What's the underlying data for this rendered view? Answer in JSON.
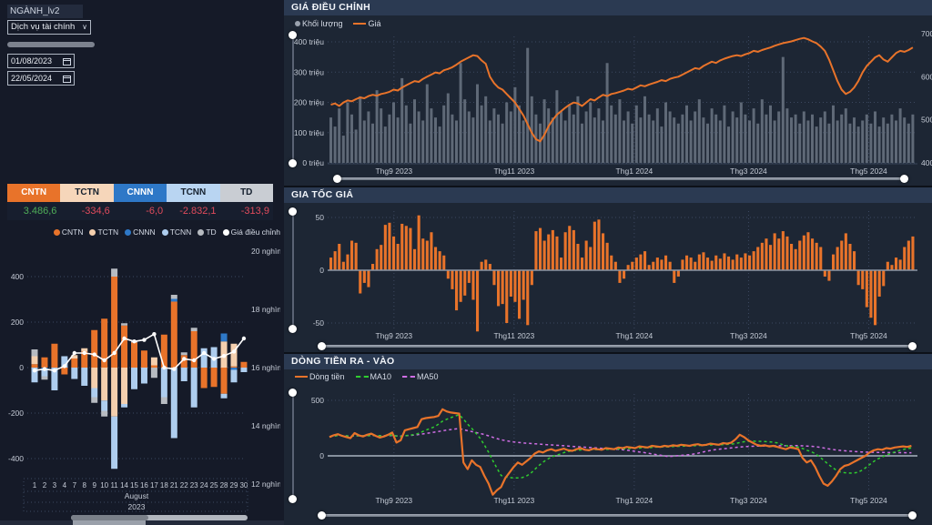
{
  "filters": {
    "field_label": "NGÀNH_lv2",
    "dropdown_value": "Dịch vụ tài chính",
    "date_from": "01/08/2023",
    "date_to": "22/05/2024"
  },
  "summary_table": {
    "headers": [
      "CNTN",
      "TCTN",
      "CNNN",
      "TCNN",
      "TD"
    ],
    "header_bg": [
      "#e8732a",
      "#f6d6ba",
      "#2e78c7",
      "#b9d5f2",
      "#c9cdd3"
    ],
    "header_fg": [
      "#ffffff",
      "#15202e",
      "#ffffff",
      "#15202e",
      "#15202e"
    ],
    "values": [
      "3.486,6",
      "-334,6",
      "-6,0",
      "-2.832,1",
      "-313,9"
    ],
    "value_colors": [
      "#4fae58",
      "#e14b5c",
      "#e14b5c",
      "#e14b5c",
      "#e14b5c"
    ]
  },
  "colors": {
    "background": "#10151f",
    "panel": "#1d2634",
    "titlebar": "#2b3a52",
    "orange": "#e8732a",
    "peach": "#f4cfae",
    "blue": "#2e78c7",
    "light_blue": "#aecdee",
    "gray": "#c3c7cd",
    "volume_gray": "#5f6977",
    "white_line": "#ffffff",
    "ma10_green": "#2fcc2f",
    "ma50_violet": "#cf6ee4",
    "axis_text": "#c5cbd6",
    "grid": "#3c4860"
  },
  "chart_data": [
    {
      "id": "flow_by_day",
      "type": "bar",
      "stacked": true,
      "title": "",
      "legend": [
        "CNTN",
        "TCTN",
        "CNNN",
        "TCNN",
        "TD",
        "Giá điều chỉnh"
      ],
      "legend_colors": [
        "#e8732a",
        "#f4cfae",
        "#2e78c7",
        "#aecdee",
        "#b7bbc1",
        "#ffffff"
      ],
      "categories": [
        "1",
        "2",
        "3",
        "4",
        "7",
        "8",
        "9",
        "10",
        "11",
        "14",
        "15",
        "16",
        "17",
        "18",
        "21",
        "22",
        "23",
        "24",
        "25",
        "28",
        "29",
        "30"
      ],
      "x_group_labels": [
        "August",
        "2023"
      ],
      "series": [
        {
          "name": "CNTN",
          "values": [
            15,
            45,
            105,
            -30,
            40,
            70,
            165,
            215,
            400,
            185,
            110,
            75,
            10,
            145,
            290,
            55,
            160,
            -90,
            -85,
            -115,
            5,
            25
          ]
        },
        {
          "name": "TCTN",
          "values": [
            35,
            0,
            0,
            0,
            15,
            15,
            -90,
            -145,
            -215,
            -160,
            0,
            0,
            35,
            0,
            0,
            0,
            0,
            0,
            0,
            115,
            100,
            0
          ]
        },
        {
          "name": "CNNN",
          "values": [
            0,
            -8,
            0,
            0,
            0,
            0,
            0,
            0,
            0,
            0,
            0,
            0,
            0,
            0,
            12,
            0,
            0,
            0,
            0,
            35,
            -10,
            0
          ]
        },
        {
          "name": "TCNN",
          "values": [
            -65,
            -30,
            -100,
            50,
            -50,
            -80,
            -40,
            -45,
            -230,
            -15,
            -95,
            -70,
            0,
            -130,
            -310,
            -60,
            -175,
            85,
            90,
            -20,
            -55,
            -20
          ]
        },
        {
          "name": "TD",
          "values": [
            30,
            -15,
            0,
            0,
            0,
            0,
            -25,
            -25,
            35,
            10,
            10,
            0,
            -45,
            -30,
            18,
            12,
            15,
            0,
            0,
            0,
            0,
            0
          ]
        }
      ],
      "line_series": {
        "name": "Giá điều chỉnh",
        "axis": "right",
        "values": [
          15.9,
          15.95,
          15.9,
          16.05,
          16.5,
          16.5,
          16.45,
          16.25,
          16.5,
          17.0,
          16.9,
          16.95,
          17.15,
          16.0,
          15.95,
          16.3,
          16.25,
          16.5,
          16.3,
          16.4,
          16.55,
          17.0
        ]
      },
      "y_left_ticks": [
        "400",
        "200",
        "0",
        "-200",
        "-400"
      ],
      "y_right_ticks": [
        "20 nghìn",
        "18 nghìn",
        "16 nghìn",
        "14 nghìn",
        "12 nghìn"
      ]
    },
    {
      "id": "gia_dieu_chinh",
      "type": "line+bar",
      "title": "GIÁ ĐIỀU CHỈNH",
      "legend": [
        "Khối lượng",
        "Giá"
      ],
      "x_ticks": [
        "Thg9 2023",
        "Thg11 2023",
        "Thg1 2024",
        "Thg3 2024",
        "Thg5 2024"
      ],
      "y_left_ticks": [
        "400 triệu",
        "300 triệu",
        "200 triệu",
        "100 triệu",
        "0 triệu"
      ],
      "y_right_ticks": [
        "700",
        "600",
        "500",
        "400"
      ],
      "volume": [
        150,
        120,
        180,
        90,
        200,
        160,
        110,
        220,
        140,
        170,
        130,
        240,
        180,
        120,
        160,
        200,
        150,
        280,
        190,
        130,
        210,
        170,
        140,
        260,
        180,
        150,
        120,
        190,
        230,
        160,
        140,
        330,
        210,
        170,
        150,
        260,
        190,
        220,
        140,
        180,
        160,
        130,
        200,
        170,
        250,
        190,
        140,
        380,
        220,
        160,
        130,
        210,
        180,
        150,
        240,
        170,
        140,
        190,
        160,
        220,
        130,
        170,
        200,
        150,
        180,
        140,
        330,
        190,
        160,
        210,
        140,
        170,
        130,
        190,
        150,
        220,
        160,
        140,
        180,
        120,
        200,
        170,
        150,
        130,
        160,
        190,
        140,
        170,
        210,
        150,
        130,
        180,
        160,
        140,
        190,
        120,
        170,
        150,
        200,
        160,
        140,
        180,
        130,
        210,
        160,
        190,
        140,
        170,
        350,
        180,
        150,
        160,
        130,
        170,
        140,
        160,
        120,
        150,
        170,
        130,
        190,
        140,
        160,
        180,
        130,
        150,
        120,
        140,
        160,
        130,
        170,
        120,
        150,
        130,
        160,
        140,
        180,
        150,
        130,
        160
      ],
      "price": [
        535,
        538,
        532,
        540,
        545,
        543,
        548,
        552,
        550,
        555,
        558,
        556,
        560,
        562,
        565,
        570,
        568,
        575,
        580,
        585,
        590,
        588,
        595,
        600,
        605,
        610,
        608,
        615,
        618,
        622,
        628,
        635,
        640,
        645,
        650,
        648,
        638,
        630,
        600,
        585,
        575,
        570,
        560,
        550,
        540,
        525,
        510,
        490,
        470,
        455,
        450,
        465,
        485,
        500,
        512,
        520,
        528,
        535,
        540,
        538,
        532,
        540,
        548,
        545,
        552,
        558,
        555,
        560,
        562,
        565,
        568,
        572,
        570,
        575,
        580,
        578,
        582,
        585,
        588,
        592,
        590,
        595,
        598,
        600,
        605,
        610,
        615,
        620,
        618,
        625,
        630,
        635,
        632,
        638,
        642,
        645,
        648,
        650,
        648,
        652,
        655,
        660,
        658,
        662,
        665,
        668,
        672,
        675,
        678,
        680,
        682,
        685,
        688,
        690,
        687,
        682,
        678,
        670,
        660,
        640,
        615,
        590,
        570,
        560,
        565,
        575,
        590,
        610,
        625,
        635,
        645,
        650,
        640,
        635,
        645,
        655,
        660,
        658,
        662,
        668
      ]
    },
    {
      "id": "gia_toc_gia",
      "type": "bar",
      "title": "GIA TỐC GIÁ",
      "x_ticks": [
        "Thg9 2023",
        "Thg11 2023",
        "Thg1 2024",
        "Thg3 2024",
        "Thg5 2024"
      ],
      "y_ticks": [
        "50",
        "0",
        "-50"
      ],
      "values": [
        12,
        18,
        25,
        8,
        15,
        28,
        26,
        -22,
        -12,
        -16,
        6,
        20,
        24,
        43,
        45,
        32,
        25,
        44,
        42,
        40,
        20,
        52,
        30,
        28,
        36,
        22,
        18,
        14,
        -8,
        -18,
        -38,
        -30,
        -24,
        -12,
        -28,
        -58,
        8,
        10,
        6,
        -14,
        -34,
        -32,
        -50,
        -25,
        -30,
        -46,
        -28,
        -52,
        -14,
        37,
        40,
        28,
        34,
        38,
        32,
        12,
        36,
        42,
        38,
        25,
        12,
        28,
        22,
        46,
        48,
        35,
        26,
        14,
        8,
        -12,
        -8,
        5,
        8,
        12,
        15,
        18,
        5,
        8,
        12,
        10,
        14,
        8,
        -12,
        -6,
        10,
        14,
        12,
        8,
        15,
        17,
        12,
        9,
        14,
        11,
        16,
        13,
        10,
        15,
        12,
        16,
        14,
        18,
        22,
        26,
        30,
        24,
        35,
        30,
        37,
        32,
        25,
        20,
        28,
        33,
        36,
        30,
        26,
        22,
        -6,
        -10,
        15,
        22,
        28,
        35,
        25,
        18,
        -14,
        -18,
        -35,
        -45,
        -52,
        -25,
        -15,
        8,
        5,
        12,
        10,
        22,
        28,
        32
      ]
    },
    {
      "id": "dong_tien",
      "type": "line",
      "title": "DÒNG TIỀN RA - VÀO",
      "legend": [
        "Dòng tiền",
        "MA10",
        "MA50"
      ],
      "x_ticks": [
        "Thg9 2023",
        "Thg11 2023",
        "Thg1 2024",
        "Thg3 2024",
        "Thg5 2024"
      ],
      "y_ticks": [
        "500",
        "0"
      ],
      "values": [
        170,
        185,
        195,
        180,
        170,
        160,
        205,
        185,
        175,
        190,
        200,
        180,
        165,
        175,
        190,
        210,
        120,
        140,
        230,
        240,
        250,
        260,
        330,
        340,
        345,
        350,
        360,
        420,
        400,
        390,
        385,
        380,
        -60,
        -120,
        -40,
        -80,
        -100,
        -180,
        -250,
        -350,
        -310,
        -280,
        -200,
        -150,
        -100,
        -60,
        -80,
        -50,
        -20,
        20,
        40,
        30,
        50,
        60,
        45,
        55,
        65,
        50,
        45,
        60,
        70,
        55,
        50,
        65,
        60,
        55,
        70,
        65,
        60,
        75,
        70,
        80,
        75,
        70,
        85,
        80,
        75,
        90,
        85,
        80,
        90,
        85,
        95,
        90,
        100,
        95,
        90,
        100,
        105,
        95,
        100,
        110,
        105,
        100,
        115,
        110,
        120,
        150,
        190,
        170,
        140,
        120,
        100,
        90,
        95,
        85,
        90,
        80,
        70,
        60,
        75,
        70,
        60,
        -20,
        -60,
        -40,
        -100,
        -180,
        -250,
        -270,
        -230,
        -180,
        -120,
        -90,
        -80,
        -60,
        -40,
        -20,
        0,
        30,
        50,
        60,
        55,
        70,
        65,
        75,
        80,
        85,
        80,
        90
      ]
    }
  ]
}
